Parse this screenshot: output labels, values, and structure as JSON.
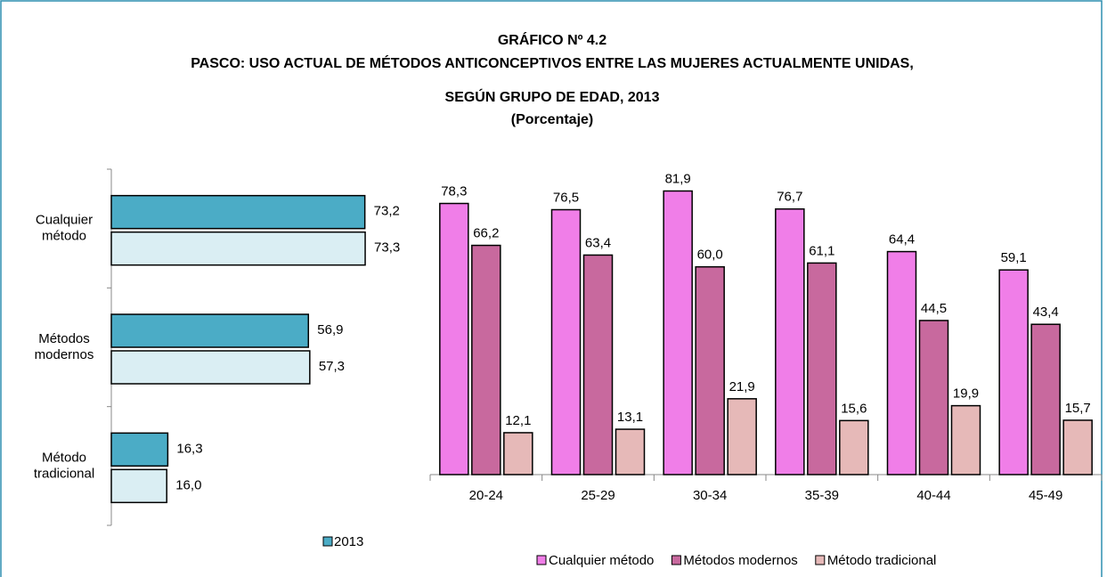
{
  "header": {
    "title": "GRÁFICO Nº 4.2",
    "subtitle": [
      "PASCO: USO ACTUAL DE MÉTODOS ANTICONCEPTIVOS ENTRE LAS MUJERES ACTUALMENTE UNIDAS,",
      "SEGÚN GRUPO DE EDAD, 2013",
      "(Porcentaje)"
    ]
  },
  "chart_data": [
    {
      "type": "hbar",
      "categories": [
        "Cualquier método",
        "Métodos modernos",
        "Método tradicional"
      ],
      "xlim": [
        0,
        90
      ],
      "series": [
        {
          "name": "2013",
          "color": "#4bacc6",
          "values": [
            73.2,
            56.9,
            16.3
          ],
          "value_labels": [
            "73,2",
            "56,9",
            "16,3"
          ]
        },
        {
          "color": "#daeef3",
          "values": [
            73.3,
            57.3,
            16.0
          ],
          "value_labels": [
            "73,3",
            "57,3",
            "16,0"
          ]
        }
      ]
    },
    {
      "type": "bar",
      "categories": [
        "20-24",
        "25-29",
        "30-34",
        "35-39",
        "40-44",
        "45-49"
      ],
      "ylim": [
        0,
        90
      ],
      "series": [
        {
          "name": "Cualquier método",
          "color": "#f07ee8",
          "values": [
            78.3,
            76.5,
            81.9,
            76.7,
            64.4,
            59.1
          ],
          "value_labels": [
            "78,3",
            "76,5",
            "81,9",
            "76,7",
            "64,4",
            "59,1"
          ]
        },
        {
          "name": "Métodos modernos",
          "color": "#c8699e",
          "values": [
            66.2,
            63.4,
            60.0,
            61.1,
            44.5,
            43.4
          ],
          "value_labels": [
            "66,2",
            "63,4",
            "60,0",
            "61,1",
            "44,5",
            "43,4"
          ]
        },
        {
          "name": "Método tradicional",
          "color": "#e6b9b8",
          "values": [
            12.1,
            13.1,
            21.9,
            15.6,
            19.9,
            15.7
          ],
          "value_labels": [
            "12,1",
            "13,1",
            "21,9",
            "15,6",
            "19,9",
            "15,7"
          ]
        }
      ]
    }
  ]
}
